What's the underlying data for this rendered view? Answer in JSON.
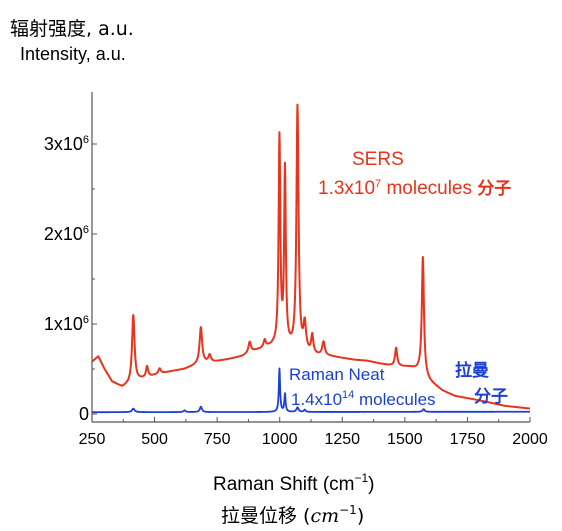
{
  "chart_data": {
    "type": "line",
    "title": "",
    "ylabel_cn": "辐射强度, a.u.",
    "ylabel": "Intensity, a.u.",
    "xlabel": "Raman Shift (cm⁻¹)",
    "xlabel_cn": "拉曼位移 (cm⁻¹)",
    "xlim": [
      250,
      2000
    ],
    "ylim": [
      -100000,
      3600000
    ],
    "xticks": [
      250,
      500,
      750,
      1000,
      1250,
      1500,
      1750,
      2000
    ],
    "yticks": [
      {
        "value": 0,
        "label": "0"
      },
      {
        "value": 1000000,
        "label": "1x10^6"
      },
      {
        "value": 2000000,
        "label": "2x10^6"
      },
      {
        "value": 3000000,
        "label": "3x10^6"
      }
    ],
    "series": [
      {
        "label_lines": [
          "SERS",
          "1.3x10^7 molecules 分子"
        ],
        "color": "#e8341c",
        "baseline": [
          [
            250,
            580000
          ],
          [
            275,
            640000
          ],
          [
            300,
            500000
          ],
          [
            330,
            360000
          ],
          [
            370,
            300000
          ],
          [
            400,
            330000
          ],
          [
            440,
            380000
          ],
          [
            500,
            430000
          ],
          [
            560,
            470000
          ],
          [
            620,
            500000
          ],
          [
            680,
            560000
          ],
          [
            740,
            580000
          ],
          [
            800,
            610000
          ],
          [
            850,
            640000
          ],
          [
            900,
            700000
          ],
          [
            950,
            740000
          ],
          [
            990,
            760000
          ],
          [
            1050,
            720000
          ],
          [
            1100,
            680000
          ],
          [
            1150,
            650000
          ],
          [
            1200,
            640000
          ],
          [
            1250,
            620000
          ],
          [
            1300,
            600000
          ],
          [
            1350,
            590000
          ],
          [
            1400,
            560000
          ],
          [
            1440,
            540000
          ],
          [
            1480,
            530000
          ],
          [
            1520,
            520000
          ],
          [
            1560,
            480000
          ],
          [
            1600,
            360000
          ],
          [
            1650,
            260000
          ],
          [
            1700,
            200000
          ],
          [
            1800,
            150000
          ],
          [
            1900,
            90000
          ],
          [
            2000,
            60000
          ]
        ],
        "peaks": [
          [
            415,
            750000,
            6
          ],
          [
            470,
            120000,
            5
          ],
          [
            520,
            60000,
            6
          ],
          [
            685,
            400000,
            6
          ],
          [
            720,
            80000,
            6
          ],
          [
            880,
            120000,
            6
          ],
          [
            940,
            80000,
            5
          ],
          [
            999,
            2300000,
            4
          ],
          [
            1021,
            1950000,
            4
          ],
          [
            1071,
            2700000,
            5
          ],
          [
            1100,
            300000,
            6
          ],
          [
            1130,
            200000,
            5
          ],
          [
            1175,
            150000,
            6
          ],
          [
            1465,
            200000,
            5
          ],
          [
            1572,
            1300000,
            5
          ]
        ]
      },
      {
        "label_lines": [
          "Raman Neat",
          "1.4x10^14 molecules"
        ],
        "label_cn": [
          "拉曼",
          "分子"
        ],
        "color": "#1c3fd6",
        "baseline": [
          [
            250,
            20000
          ],
          [
            2000,
            25000
          ]
        ],
        "peaks": [
          [
            415,
            40000,
            6
          ],
          [
            620,
            20000,
            5
          ],
          [
            685,
            60000,
            5
          ],
          [
            999,
            480000,
            3
          ],
          [
            1021,
            200000,
            3
          ],
          [
            1071,
            50000,
            5
          ],
          [
            1100,
            25000,
            4
          ],
          [
            1575,
            30000,
            5
          ]
        ]
      }
    ]
  }
}
